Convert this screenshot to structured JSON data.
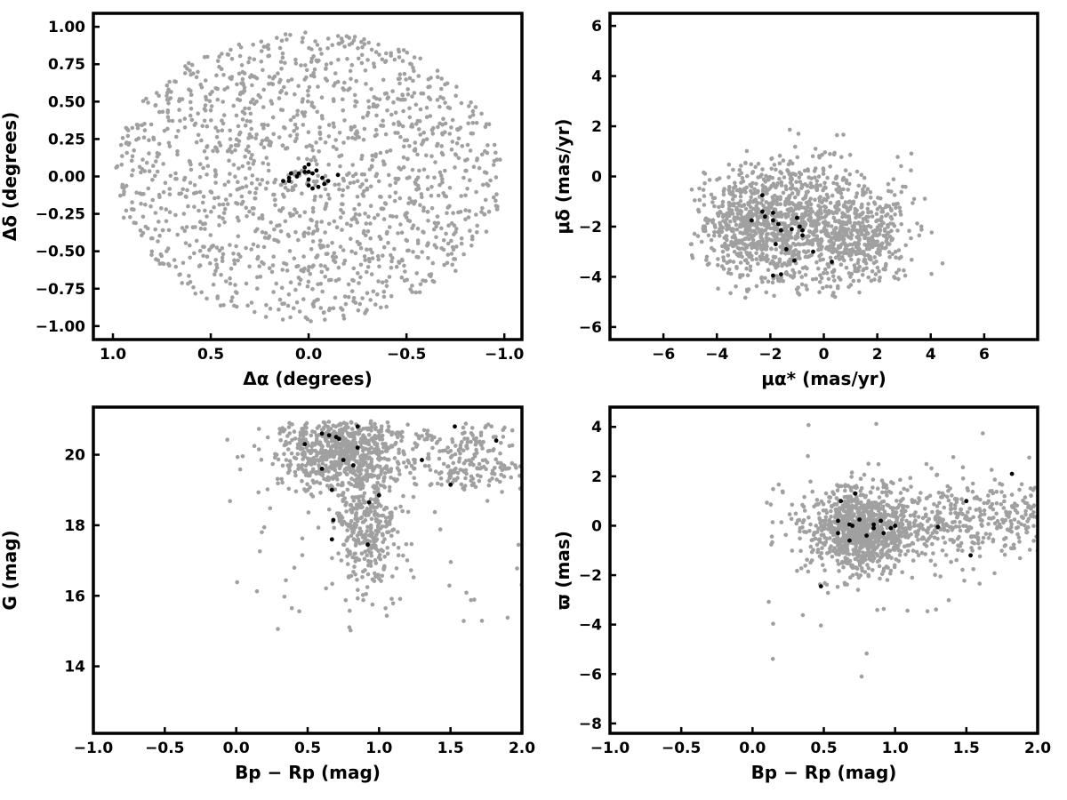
{
  "figure": {
    "background": "#ffffff"
  },
  "colors": {
    "field": "#a0a0a0",
    "members": "#000000",
    "axes": "#000000"
  },
  "chart_data": [
    {
      "id": "sky",
      "type": "scatter",
      "xlabel": "Δα (degrees)",
      "ylabel": "Δδ (degrees)",
      "xlim": [
        1.1,
        -1.09
      ],
      "ylim": [
        -1.09,
        1.09
      ],
      "x_inverted": true,
      "xticks": [
        1.0,
        0.5,
        0.0,
        -0.5,
        -1.0
      ],
      "xtick_labels": [
        "1.0",
        "0.5",
        "0.0",
        "−0.5",
        "−1.0"
      ],
      "yticks": [
        -1.0,
        -0.75,
        -0.5,
        -0.25,
        0.0,
        0.25,
        0.5,
        0.75,
        1.0
      ],
      "ytick_labels": [
        "−1.00",
        "−0.75",
        "−0.50",
        "−0.25",
        "0.00",
        "0.25",
        "0.50",
        "0.75",
        "1.00"
      ],
      "grid": false,
      "series": [
        {
          "color": "#a0a0a0",
          "distribution": {
            "shape": "disk",
            "center": [
              0.0,
              0.0
            ],
            "radius": [
              0.99,
              0.97
            ],
            "n": 1500,
            "seed": 11
          }
        },
        {
          "color": "#000000",
          "points": [
            [
              0.13,
              -0.03
            ],
            [
              0.1,
              -0.03
            ],
            [
              0.09,
              0.02
            ],
            [
              0.05,
              0.02
            ],
            [
              0.02,
              0.03
            ],
            [
              0.0,
              0.03
            ],
            [
              0.02,
              0.06
            ],
            [
              0.0,
              0.08
            ],
            [
              0.0,
              -0.02
            ],
            [
              -0.02,
              0.02
            ],
            [
              -0.04,
              0.04
            ],
            [
              0.0,
              -0.06
            ],
            [
              -0.02,
              -0.08
            ],
            [
              -0.05,
              -0.07
            ],
            [
              -0.08,
              -0.05
            ],
            [
              0.06,
              0.0
            ],
            [
              0.1,
              -0.01
            ],
            [
              -0.07,
              -0.01
            ],
            [
              -0.1,
              -0.03
            ],
            [
              -0.15,
              0.01
            ]
          ]
        }
      ]
    },
    {
      "id": "proper-motion",
      "type": "scatter",
      "xlabel": "μα* (mas/yr)",
      "ylabel": "μδ (mas/yr)",
      "xlim": [
        -8,
        8
      ],
      "ylim": [
        -6.5,
        6.5
      ],
      "xticks": [
        -6,
        -4,
        -2,
        0,
        2,
        4,
        6
      ],
      "xtick_labels": [
        "−6",
        "−4",
        "−2",
        "0",
        "2",
        "4",
        "6"
      ],
      "yticks": [
        -6,
        -4,
        -2,
        0,
        2,
        4,
        6
      ],
      "ytick_labels": [
        "−6",
        "−4",
        "−2",
        "0",
        "2",
        "4",
        "6"
      ],
      "grid": false,
      "series": [
        {
          "color": "#a0a0a0",
          "distribution": {
            "shape": "gaussian-mix",
            "components": [
              [
                -0.8,
                -1.8,
                1.6,
                1.3,
                0.55
              ],
              [
                -3.0,
                -2.0,
                0.9,
                1.0,
                0.25
              ],
              [
                1.5,
                -2.5,
                1.0,
                1.0,
                0.2
              ]
            ],
            "clip_x": [
              -5.0,
              4.8
            ],
            "clip_y": [
              -5.0,
              4.3
            ],
            "n": 1500,
            "seed": 23
          }
        },
        {
          "color": "#000000",
          "points": [
            [
              -2.7,
              -1.75
            ],
            [
              -2.3,
              -0.75
            ],
            [
              -2.3,
              -1.4
            ],
            [
              -2.2,
              -1.6
            ],
            [
              -1.9,
              -1.45
            ],
            [
              -1.9,
              -1.75
            ],
            [
              -1.9,
              -3.95
            ],
            [
              -1.8,
              -2.7
            ],
            [
              -1.7,
              -1.9
            ],
            [
              -1.6,
              -2.15
            ],
            [
              -1.6,
              -3.9
            ],
            [
              -1.4,
              -2.9
            ],
            [
              -1.2,
              -2.1
            ],
            [
              -1.1,
              -3.35
            ],
            [
              -1.0,
              -1.65
            ],
            [
              -0.9,
              -2.0
            ],
            [
              -0.8,
              -2.15
            ],
            [
              -0.8,
              -2.35
            ],
            [
              -0.4,
              -3.0
            ],
            [
              0.3,
              -3.4
            ]
          ]
        }
      ]
    },
    {
      "id": "cmd-g",
      "type": "scatter",
      "xlabel": "Bp − Rp (mag)",
      "ylabel": "G (mag)",
      "xlim": [
        -1.0,
        2.0
      ],
      "ylim": [
        12.1,
        21.35
      ],
      "xticks": [
        -1.0,
        -0.5,
        0.0,
        0.5,
        1.0,
        1.5,
        2.0
      ],
      "xtick_labels": [
        "−1.0",
        "−0.5",
        "0.0",
        "0.5",
        "1.0",
        "1.5",
        "2.0"
      ],
      "yticks": [
        14,
        16,
        18,
        20
      ],
      "ytick_labels": [
        "14",
        "16",
        "18",
        "20"
      ],
      "grid": false,
      "series": [
        {
          "color": "#a0a0a0",
          "distribution": {
            "shape": "cmd",
            "n": 1300,
            "seed": 37
          }
        },
        {
          "color": "#000000",
          "points": [
            [
              0.48,
              20.3
            ],
            [
              0.6,
              20.6
            ],
            [
              0.65,
              20.55
            ],
            [
              0.7,
              20.5
            ],
            [
              0.72,
              20.45
            ],
            [
              0.85,
              20.8
            ],
            [
              0.6,
              19.6
            ],
            [
              0.75,
              19.85
            ],
            [
              0.82,
              19.7
            ],
            [
              0.85,
              20.2
            ],
            [
              0.67,
              19.0
            ],
            [
              0.93,
              18.65
            ],
            [
              1.0,
              18.85
            ],
            [
              1.3,
              19.85
            ],
            [
              1.5,
              19.15
            ],
            [
              1.53,
              20.8
            ],
            [
              1.82,
              20.4
            ],
            [
              0.68,
              18.15
            ],
            [
              0.67,
              17.6
            ],
            [
              0.92,
              17.45
            ]
          ]
        }
      ]
    },
    {
      "id": "parallax",
      "type": "scatter",
      "xlabel": "Bp − Rp (mag)",
      "ylabel": "ϖ (mas)",
      "xlim": [
        -1.0,
        2.0
      ],
      "ylim": [
        -8.4,
        4.8
      ],
      "xticks": [
        -1.0,
        -0.5,
        0.0,
        0.5,
        1.0,
        1.5,
        2.0
      ],
      "xtick_labels": [
        "−1.0",
        "−0.5",
        "0.0",
        "0.5",
        "1.0",
        "1.5",
        "2.0"
      ],
      "yticks": [
        -8,
        -6,
        -4,
        -2,
        0,
        2,
        4
      ],
      "ytick_labels": [
        "−8",
        "−6",
        "−4",
        "−2",
        "0",
        "2",
        "4"
      ],
      "grid": false,
      "series": [
        {
          "color": "#a0a0a0",
          "distribution": {
            "shape": "parallax",
            "n": 1400,
            "seed": 53
          }
        },
        {
          "color": "#000000",
          "points": [
            [
              0.48,
              -2.45
            ],
            [
              0.6,
              0.2
            ],
            [
              0.6,
              -0.3
            ],
            [
              0.62,
              1.0
            ],
            [
              0.68,
              0.05
            ],
            [
              0.7,
              0.0
            ],
            [
              0.72,
              1.3
            ],
            [
              0.75,
              0.25
            ],
            [
              0.8,
              -0.4
            ],
            [
              0.85,
              0.05
            ],
            [
              0.85,
              -0.1
            ],
            [
              0.9,
              0.2
            ],
            [
              0.92,
              -0.3
            ],
            [
              0.97,
              -0.1
            ],
            [
              1.0,
              0.0
            ],
            [
              1.3,
              -0.05
            ],
            [
              1.5,
              1.0
            ],
            [
              1.53,
              -1.2
            ],
            [
              1.82,
              2.1
            ],
            [
              0.68,
              -0.6
            ]
          ]
        }
      ]
    }
  ]
}
